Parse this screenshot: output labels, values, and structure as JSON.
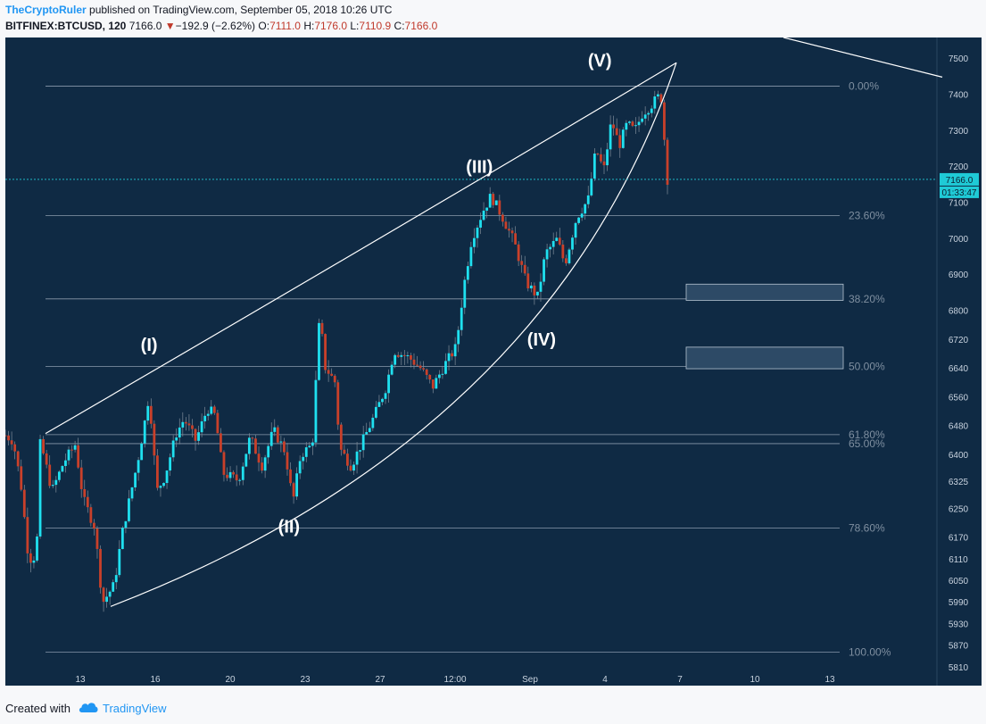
{
  "header": {
    "author": "TheCryptoRuler",
    "published_text": "published on TradingView.com, September 05, 2018 10:26 UTC",
    "symbol_text": "BITFINEX:BTCUSD, 120",
    "last": "7166.0",
    "change_arrow": "▼",
    "change": "−192.9 (−2.62%)",
    "o_label": "O:",
    "o_value": "7111.0",
    "h_label": "H:",
    "h_value": "7176.0",
    "l_label": "L:",
    "l_value": "7110.9",
    "c_label": "C:",
    "c_value": "7166.0"
  },
  "footer": {
    "created_with": "Created with",
    "brand": "TradingView",
    "logo_icon": "tradingview-cloud-icon"
  },
  "colors": {
    "background": "#0f2a44",
    "up": "#1fe0ef",
    "down": "#c9402a",
    "level_line": "#8a99ab",
    "level_text": "#7f8fa0",
    "wedge": "#ffffff",
    "box_fill": "#2d4a66"
  },
  "chart_data": {
    "type": "candlestick",
    "symbol": "BITFINEX:BTCUSD",
    "interval": "120",
    "ylim": [
      5760,
      7560
    ],
    "y_ticks": [
      5810,
      5870,
      5930,
      5990,
      6050,
      6110,
      6170,
      6250,
      6325,
      6400,
      6480,
      6560,
      6640,
      6720,
      6800,
      6900,
      7000,
      7100,
      7200,
      7300,
      7400,
      7500
    ],
    "x_ticks": [
      "13",
      "16",
      "20",
      "23",
      "27",
      "12:00",
      "Sep",
      "4",
      "7",
      "10",
      "13"
    ],
    "price_label": "7166.0",
    "countdown_label": "01:33:47",
    "last_price": 7166.0,
    "fib_levels": [
      {
        "label": "0.00%",
        "price": 7425
      },
      {
        "label": "23.60%",
        "price": 7065
      },
      {
        "label": "38.20%",
        "price": 6834
      },
      {
        "label": "50.00%",
        "price": 6646
      },
      {
        "label": "61.80%",
        "price": 6457
      },
      {
        "label": "65.00%",
        "price": 6432
      },
      {
        "label": "78.60%",
        "price": 6198
      },
      {
        "label": "100.00%",
        "price": 5853
      }
    ],
    "wave_labels": [
      {
        "label": "(I)",
        "price": 6690,
        "t": 0.185
      },
      {
        "label": "(II)",
        "price": 6185,
        "t": 0.365
      },
      {
        "label": "(III)",
        "price": 7185,
        "t": 0.61
      },
      {
        "label": "(IV)",
        "price": 6705,
        "t": 0.69
      },
      {
        "label": "(V)",
        "price": 7480,
        "t": 0.765
      }
    ],
    "zones": [
      {
        "top": 6875,
        "bottom": 6830
      },
      {
        "top": 6700,
        "bottom": 6640
      }
    ],
    "key_points": [
      [
        0.0,
        6455
      ],
      [
        0.01,
        6440
      ],
      [
        0.02,
        6320
      ],
      [
        0.03,
        6110
      ],
      [
        0.04,
        6120
      ],
      [
        0.045,
        6440
      ],
      [
        0.06,
        6300
      ],
      [
        0.075,
        6380
      ],
      [
        0.09,
        6430
      ],
      [
        0.1,
        6280
      ],
      [
        0.115,
        6200
      ],
      [
        0.125,
        5990
      ],
      [
        0.14,
        6040
      ],
      [
        0.15,
        6180
      ],
      [
        0.17,
        6380
      ],
      [
        0.18,
        6500
      ],
      [
        0.185,
        6570
      ],
      [
        0.195,
        6300
      ],
      [
        0.205,
        6340
      ],
      [
        0.22,
        6460
      ],
      [
        0.23,
        6500
      ],
      [
        0.245,
        6440
      ],
      [
        0.26,
        6530
      ],
      [
        0.27,
        6510
      ],
      [
        0.28,
        6350
      ],
      [
        0.3,
        6330
      ],
      [
        0.315,
        6450
      ],
      [
        0.33,
        6370
      ],
      [
        0.345,
        6470
      ],
      [
        0.36,
        6410
      ],
      [
        0.37,
        6270
      ],
      [
        0.38,
        6400
      ],
      [
        0.395,
        6430
      ],
      [
        0.405,
        6810
      ],
      [
        0.41,
        6650
      ],
      [
        0.425,
        6600
      ],
      [
        0.43,
        6420
      ],
      [
        0.445,
        6370
      ],
      [
        0.46,
        6440
      ],
      [
        0.475,
        6510
      ],
      [
        0.49,
        6590
      ],
      [
        0.5,
        6690
      ],
      [
        0.52,
        6670
      ],
      [
        0.535,
        6640
      ],
      [
        0.55,
        6590
      ],
      [
        0.565,
        6650
      ],
      [
        0.58,
        6700
      ],
      [
        0.59,
        6870
      ],
      [
        0.6,
        7000
      ],
      [
        0.615,
        7080
      ],
      [
        0.625,
        7120
      ],
      [
        0.64,
        7060
      ],
      [
        0.655,
        6990
      ],
      [
        0.67,
        6880
      ],
      [
        0.685,
        6840
      ],
      [
        0.695,
        6960
      ],
      [
        0.71,
        7000
      ],
      [
        0.72,
        6930
      ],
      [
        0.735,
        7060
      ],
      [
        0.75,
        7110
      ],
      [
        0.76,
        7250
      ],
      [
        0.77,
        7190
      ],
      [
        0.78,
        7330
      ],
      [
        0.79,
        7260
      ],
      [
        0.8,
        7320
      ],
      [
        0.81,
        7300
      ],
      [
        0.82,
        7350
      ],
      [
        0.83,
        7370
      ],
      [
        0.84,
        7395
      ],
      [
        0.845,
        7390
      ],
      [
        0.85,
        7200
      ],
      [
        0.852,
        7166
      ]
    ]
  }
}
